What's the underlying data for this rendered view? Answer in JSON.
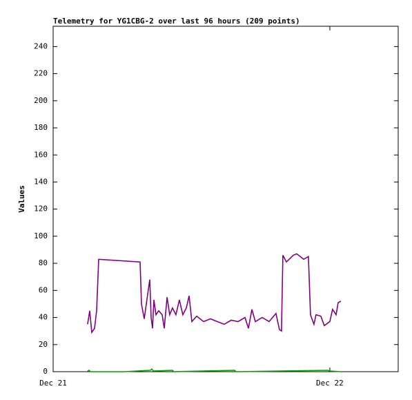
{
  "chart_data": {
    "type": "line",
    "title": "Telemetry for YG1CBG-2 over last 96 hours (209 points)",
    "y_label": "Values",
    "xlim": [
      0,
      29.93
    ],
    "xticks": [
      {
        "value": 0,
        "label": "Dec 21"
      },
      {
        "value": 24,
        "label": "Dec 22"
      }
    ],
    "ylim": [
      0,
      255
    ],
    "yticks": [
      0,
      20,
      40,
      60,
      80,
      100,
      120,
      140,
      160,
      180,
      200,
      220,
      240
    ],
    "grid": false,
    "series": [
      {
        "color": "#800080",
        "x": [
          2.99,
          3.17,
          3.35,
          3.59,
          3.77,
          3.95,
          7.54,
          7.66,
          7.9,
          8.08,
          8.38,
          8.5,
          8.62,
          8.74,
          8.92,
          9.16,
          9.46,
          9.64,
          9.88,
          10.11,
          10.35,
          10.65,
          10.95,
          11.25,
          11.55,
          11.79,
          12.03,
          12.45,
          13.05,
          13.65,
          14.24,
          14.84,
          15.44,
          16.04,
          16.64,
          16.94,
          17.24,
          17.54,
          18.13,
          18.73,
          19.33,
          19.63,
          19.81,
          19.93,
          20.23,
          20.83,
          21.13,
          21.73,
          22.14,
          22.32,
          22.62,
          22.8,
          23.22,
          23.52,
          24.0,
          24.24,
          24.54,
          24.72,
          24.96
        ],
        "values": [
          35,
          45,
          29,
          32,
          45,
          83,
          81,
          50,
          39,
          50,
          68,
          40,
          32,
          53,
          42,
          45,
          42,
          32,
          55,
          42,
          47,
          42,
          53,
          42,
          47,
          56,
          37,
          41,
          37,
          39,
          37,
          35,
          38,
          37,
          40,
          32,
          46,
          37,
          40,
          37,
          43,
          31,
          30,
          86,
          81,
          86,
          87,
          83,
          85,
          42,
          35,
          42,
          41,
          34,
          37,
          46,
          42,
          51,
          52
        ]
      },
      {
        "color": "#00a000",
        "x": [
          2.99,
          3.11,
          3.23,
          6.16,
          8.44,
          8.56,
          8.68,
          10.35,
          10.47,
          15.74,
          15.86,
          23.82,
          24.0,
          24.96
        ],
        "values": [
          0.5,
          1,
          0,
          0,
          1,
          2,
          0.5,
          1,
          0,
          1,
          0,
          1,
          0.5,
          0
        ]
      }
    ]
  }
}
